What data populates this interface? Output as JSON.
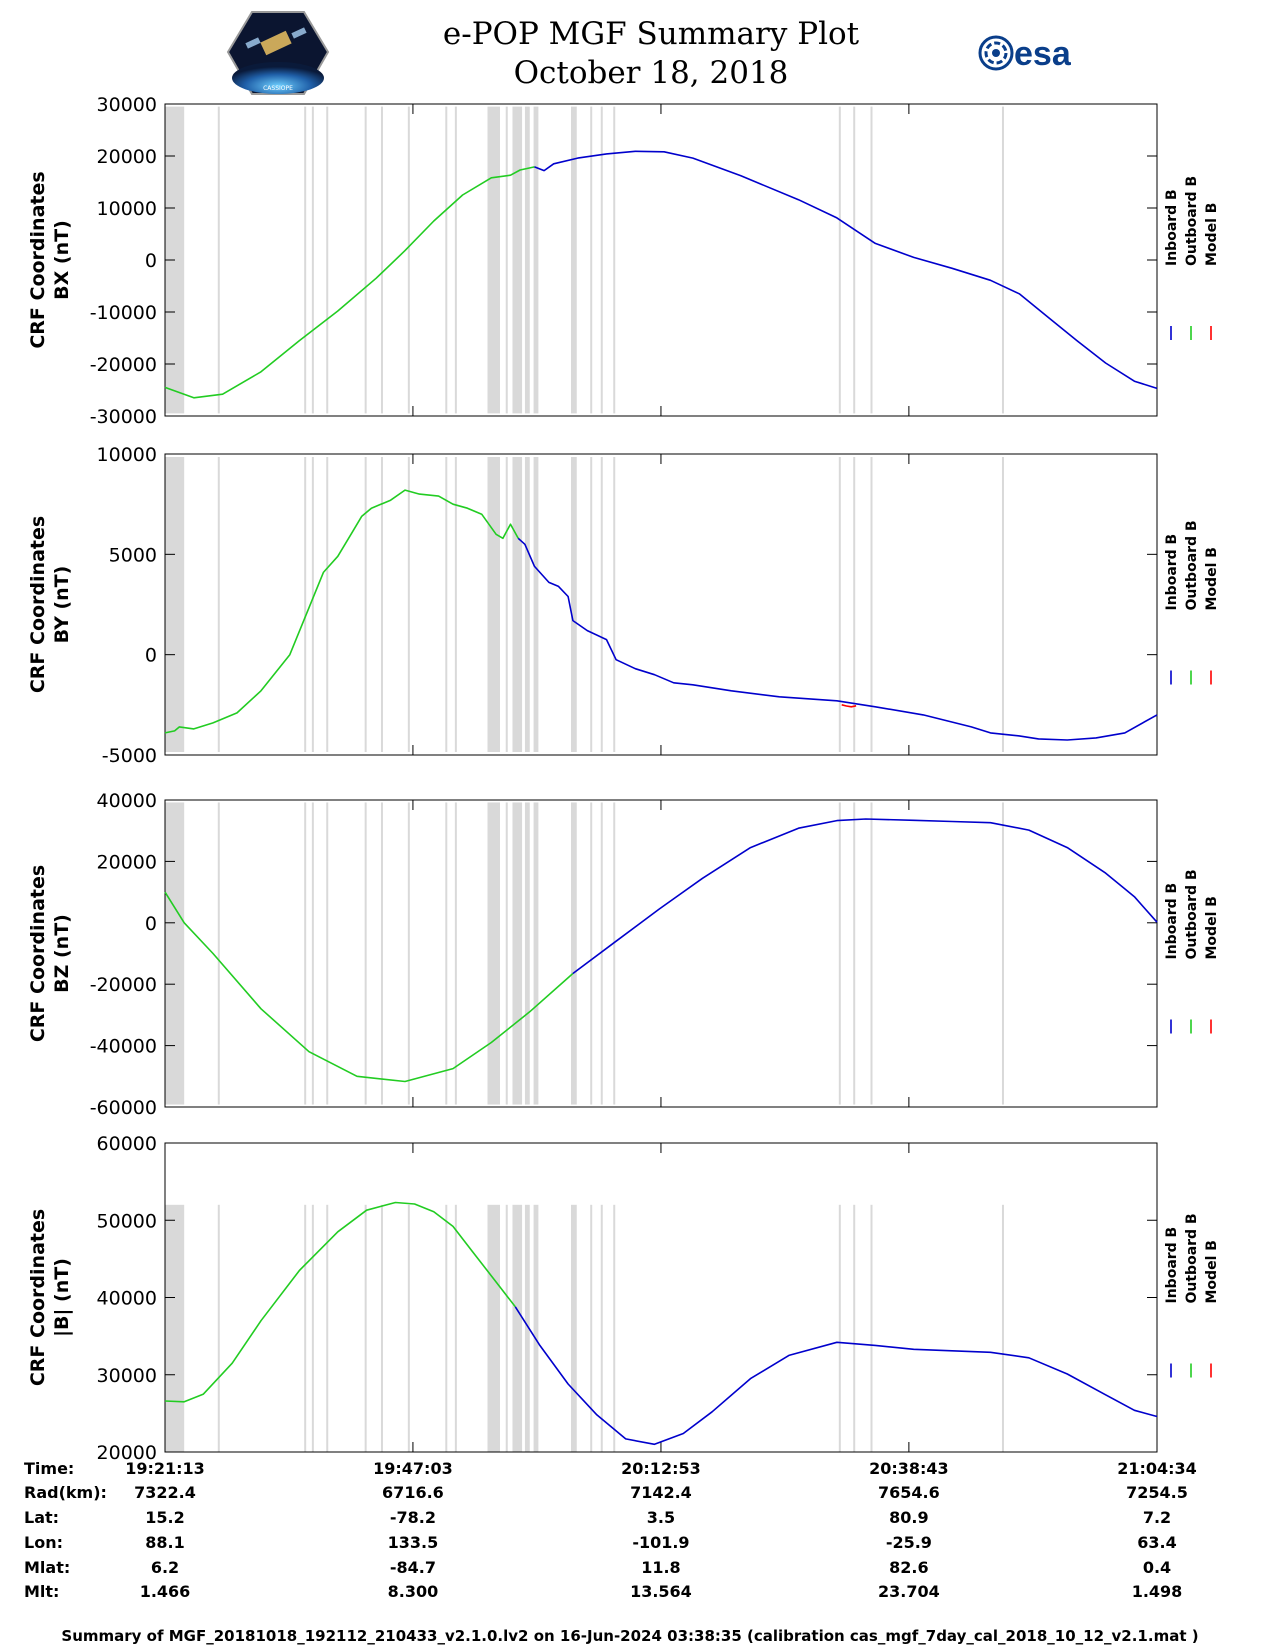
{
  "title": "e-POP MGF Summary Plot",
  "date": "October 18, 2018",
  "esa_logo_text": "esa",
  "mission_logo_text": "CASSIOPE",
  "footer": "Summary of MGF_20181018_192112_210433_v2.1.0.lv2 on 16-Jun-2024 03:38:35 (calibration cas_mgf_7day_cal_2018_10_12_v2.1.mat )",
  "legend": [
    {
      "label": "Inboard B",
      "color": "#0000cc"
    },
    {
      "label": "Outboard B",
      "color": "#22cc22"
    },
    {
      "label": "Model B",
      "color": "#ff0000"
    }
  ],
  "colors": {
    "inboard": "#0000cc",
    "outboard": "#22cc22",
    "model": "#ff0000",
    "gap": "#d9d9d9"
  },
  "info_table": {
    "row_labels": [
      "Time:",
      "Rad(km):",
      "Lat:",
      "Lon:",
      "Mlat:",
      "Mlt:"
    ],
    "columns": [
      [
        "19:21:13",
        "7322.4",
        "15.2",
        "88.1",
        "6.2",
        "1.466"
      ],
      [
        "19:47:03",
        "6716.6",
        "-78.2",
        "133.5",
        "-84.7",
        "8.300"
      ],
      [
        "20:12:53",
        "7142.4",
        "3.5",
        "-101.9",
        "11.8",
        "13.564"
      ],
      [
        "20:38:43",
        "7654.6",
        "80.9",
        "-25.9",
        "82.6",
        "23.704"
      ],
      [
        "21:04:34",
        "7254.5",
        "7.2",
        "63.4",
        "0.4",
        "1.498"
      ]
    ]
  },
  "chart_data": {
    "x_unit": "minutes since 19:21:13",
    "xlim": [
      0,
      103.35
    ],
    "xticks": [
      0,
      25.83,
      51.67,
      77.5,
      103.35
    ],
    "gaps": [
      [
        0,
        2.0
      ],
      [
        5.5,
        5.55
      ],
      [
        14.5,
        14.55
      ],
      [
        15.3,
        15.35
      ],
      [
        16.8,
        16.85
      ],
      [
        20.8,
        20.85
      ],
      [
        22.5,
        22.55
      ],
      [
        25.3,
        25.35
      ],
      [
        29.2,
        29.25
      ],
      [
        30.2,
        30.25
      ],
      [
        33.6,
        34.9
      ],
      [
        35.5,
        35.6
      ],
      [
        36.2,
        37.2
      ],
      [
        37.5,
        38.0
      ],
      [
        38.4,
        38.9
      ],
      [
        42.3,
        42.9
      ],
      [
        44.3,
        44.35
      ],
      [
        45.4,
        45.45
      ],
      [
        46.7,
        46.75
      ],
      [
        70.2,
        70.25
      ],
      [
        71.7,
        71.75
      ],
      [
        73.5,
        73.55
      ],
      [
        87.2,
        87.25
      ]
    ],
    "panels": [
      {
        "name": "BX",
        "ylabel": "CRF Coordinates",
        "ysub": "BX (nT)",
        "ylim": [
          -30000,
          30000
        ],
        "yticks": [
          -30000,
          -20000,
          -10000,
          0,
          10000,
          20000,
          30000
        ],
        "gap_ylim": [
          -29500,
          29500
        ],
        "outboard": {
          "x": [
            0,
            3,
            6,
            10,
            14,
            18,
            22,
            25,
            28,
            31,
            34,
            36,
            37,
            38.5
          ],
          "y": [
            -24500,
            -26500,
            -25800,
            -21500,
            -15500,
            -9800,
            -3500,
            1800,
            7500,
            12500,
            15800,
            16300,
            17300,
            17900
          ]
        },
        "inboard": {
          "x": [
            38.5,
            39.5,
            40.5,
            43,
            46,
            49,
            52,
            55,
            60,
            66,
            70,
            74,
            78,
            82,
            86,
            89,
            92,
            95,
            98,
            101,
            103.35
          ],
          "y": [
            17900,
            17200,
            18500,
            19600,
            20400,
            20900,
            20800,
            19600,
            16200,
            11600,
            8100,
            3200,
            500,
            -1600,
            -3900,
            -6500,
            -11000,
            -15500,
            -19800,
            -23300,
            -24700
          ]
        }
      },
      {
        "name": "BY",
        "ylabel": "CRF Coordinates",
        "ysub": "BY (nT)",
        "ylim": [
          -5000,
          10000
        ],
        "yticks": [
          -5000,
          0,
          5000,
          10000
        ],
        "gap_ylim": [
          -4850,
          9850
        ],
        "outboard": {
          "x": [
            0,
            1,
            1.5,
            3,
            5,
            7.5,
            10,
            13,
            16.5,
            18,
            19.5,
            20.5,
            21.5,
            23.5,
            25,
            26.5,
            28.5,
            30,
            31.5,
            33,
            34.5,
            35.2,
            36,
            36.8
          ],
          "y": [
            -3900,
            -3800,
            -3600,
            -3700,
            -3400,
            -2900,
            -1800,
            0,
            4100,
            4900,
            6100,
            6900,
            7300,
            7700,
            8200,
            8000,
            7900,
            7500,
            7300,
            7000,
            6000,
            5800,
            6500,
            5800
          ]
        },
        "inboard": {
          "x": [
            36.8,
            37.5,
            38.5,
            40,
            41,
            42,
            42.5,
            44,
            46,
            47,
            49,
            51,
            53,
            55,
            59,
            64,
            70,
            74,
            79,
            84,
            86,
            88,
            89,
            91,
            94,
            97,
            100,
            103.35
          ],
          "y": [
            5800,
            5500,
            4400,
            3600,
            3400,
            2900,
            1700,
            1200,
            750,
            -250,
            -700,
            -1000,
            -1400,
            -1500,
            -1800,
            -2100,
            -2300,
            -2600,
            -3000,
            -3600,
            -3900,
            -4000,
            -4050,
            -4200,
            -4250,
            -4150,
            -3900,
            -3000
          ]
        },
        "model": {
          "x": [
            70.5,
            71,
            71.5,
            72
          ],
          "y": [
            -2500,
            -2560,
            -2600,
            -2550
          ]
        }
      },
      {
        "name": "BZ",
        "ylabel": "CRF Coordinates",
        "ysub": "BZ (nT)",
        "ylim": [
          -60000,
          40000
        ],
        "yticks": [
          -60000,
          -40000,
          -20000,
          0,
          20000,
          40000
        ],
        "gap_ylim": [
          -59200,
          39200
        ],
        "outboard": {
          "x": [
            0,
            2,
            5,
            10,
            15,
            20,
            25,
            30,
            34,
            38,
            42.5
          ],
          "y": [
            10000,
            0,
            -10000,
            -28000,
            -42000,
            -50000,
            -51700,
            -47500,
            -39000,
            -29000,
            -16500
          ]
        },
        "inboard": {
          "x": [
            42.5,
            47,
            51.5,
            56,
            61,
            66,
            70,
            73,
            78,
            82,
            86,
            90,
            94,
            98,
            101,
            103.35
          ],
          "y": [
            -16500,
            -6000,
            4500,
            14500,
            24500,
            30800,
            33300,
            33800,
            33400,
            33000,
            32600,
            30200,
            24500,
            16200,
            8500,
            200
          ]
        }
      },
      {
        "name": "|B|",
        "ylabel": "CRF Coordinates",
        "ysub": "|B| (nT)",
        "ylim": [
          20000,
          60000
        ],
        "yticks": [
          20000,
          30000,
          40000,
          50000,
          60000
        ],
        "gap_ylim": [
          20000,
          52000
        ],
        "outboard": {
          "x": [
            0,
            2,
            4,
            7,
            10,
            14,
            18,
            21,
            24,
            26,
            28,
            30,
            32,
            34.5,
            36.5
          ],
          "y": [
            26600,
            26500,
            27500,
            31500,
            37000,
            43500,
            48500,
            51300,
            52300,
            52100,
            51100,
            49200,
            46000,
            42000,
            38800
          ]
        },
        "inboard": {
          "x": [
            36.5,
            39,
            42,
            45,
            48,
            51,
            54,
            57,
            61,
            65,
            70,
            74,
            78,
            82,
            86,
            90,
            94,
            98,
            101,
            103.35
          ],
          "y": [
            38800,
            33900,
            28800,
            24800,
            21700,
            21000,
            22400,
            25200,
            29500,
            32500,
            34200,
            33800,
            33300,
            33100,
            32900,
            32200,
            30100,
            27400,
            25400,
            24600
          ]
        }
      }
    ]
  }
}
